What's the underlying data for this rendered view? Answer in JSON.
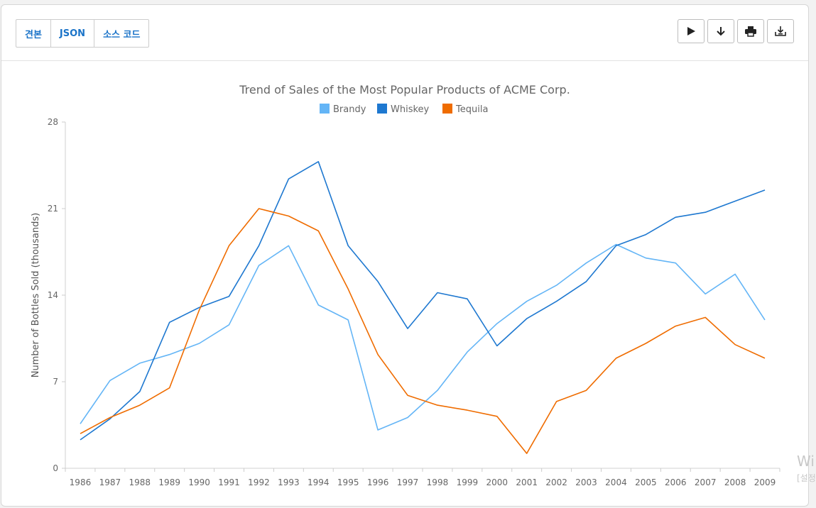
{
  "toolbar": {
    "tabs": [
      "견본",
      "JSON",
      "소스 코드"
    ],
    "tools": [
      "play-icon",
      "download-arrow-icon",
      "print-icon",
      "export-icon"
    ]
  },
  "chart_data": {
    "type": "line",
    "title": "Trend of Sales of the Most Popular Products of ACME Corp.",
    "ylabel": "Number of Bottles Sold (thousands)",
    "xlabel": "",
    "ylim": [
      0,
      28
    ],
    "yticks": [
      0,
      7,
      14,
      21,
      28
    ],
    "grid": false,
    "legend": "top-center",
    "categories": [
      "1986",
      "1987",
      "1988",
      "1989",
      "1990",
      "1991",
      "1992",
      "1993",
      "1994",
      "1995",
      "1996",
      "1997",
      "1998",
      "1999",
      "2000",
      "2001",
      "2002",
      "2003",
      "2004",
      "2005",
      "2006",
      "2007",
      "2008",
      "2009"
    ],
    "series": [
      {
        "name": "Brandy",
        "color": "#64b5f6",
        "values": [
          3.6,
          7.1,
          8.5,
          9.2,
          10.1,
          11.6,
          16.4,
          18.0,
          13.2,
          12.0,
          3.1,
          4.1,
          6.3,
          9.4,
          11.7,
          13.5,
          14.8,
          16.6,
          18.1,
          17.0,
          16.6,
          14.1,
          15.7,
          12.0
        ]
      },
      {
        "name": "Whiskey",
        "color": "#1e78d0",
        "values": [
          2.3,
          4.0,
          6.2,
          11.8,
          13.0,
          13.9,
          18.0,
          23.4,
          24.8,
          18.0,
          15.1,
          11.3,
          14.2,
          13.7,
          9.9,
          12.1,
          13.5,
          15.1,
          18.0,
          18.9,
          20.3,
          20.7,
          21.6,
          22.5
        ]
      },
      {
        "name": "Tequila",
        "color": "#ef6c00",
        "values": [
          2.8,
          4.1,
          5.1,
          6.5,
          12.8,
          18.0,
          21.0,
          20.4,
          19.2,
          14.5,
          9.2,
          5.9,
          5.1,
          4.7,
          4.2,
          1.2,
          5.4,
          6.3,
          8.9,
          10.1,
          11.5,
          12.2,
          10.0,
          8.9
        ]
      }
    ]
  },
  "watermark": {
    "line1": "Wi",
    "line2": "[설정"
  }
}
